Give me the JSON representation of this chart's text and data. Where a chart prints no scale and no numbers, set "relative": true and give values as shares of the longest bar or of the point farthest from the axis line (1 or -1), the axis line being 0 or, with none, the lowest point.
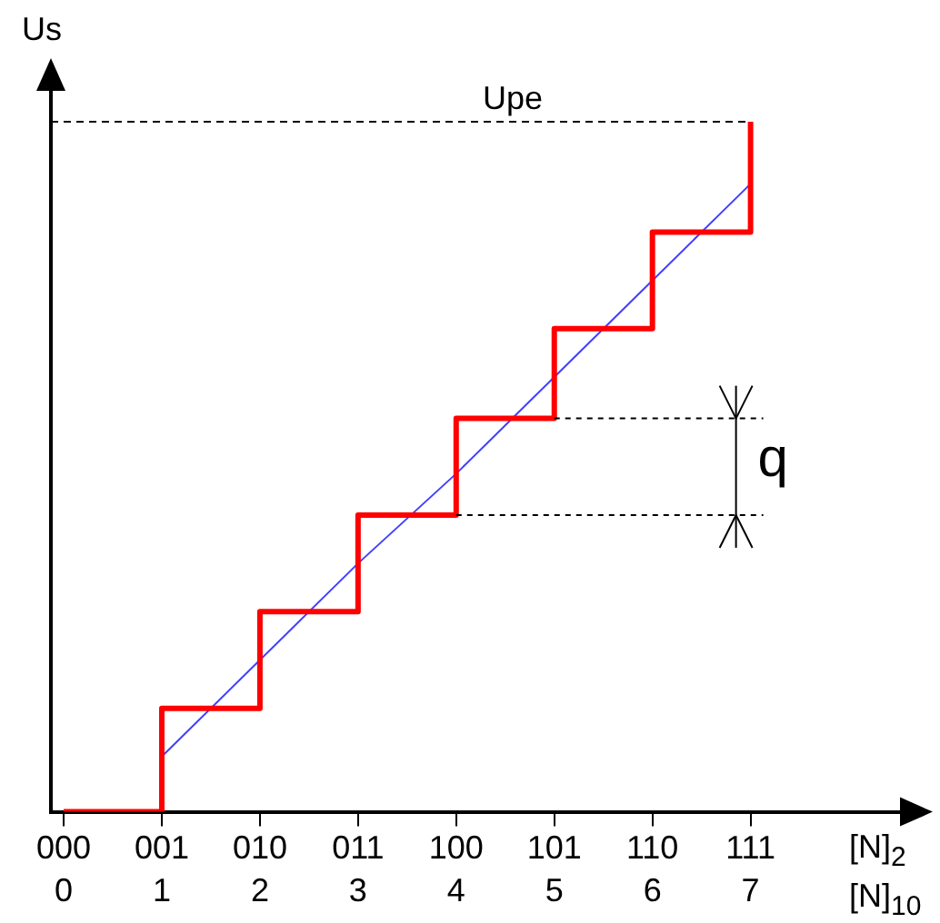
{
  "chart_data": {
    "type": "step",
    "relative": true,
    "grid": false,
    "legend": false,
    "marker": "none",
    "ylabel": "Us",
    "xlabel": "[N]$_{2}$",
    "x2label": "[N]$_{10}$",
    "categories": [
      "000",
      "001",
      "010",
      "011",
      "100",
      "101",
      "110",
      "111"
    ],
    "x2lim": [
      -0.13,
      8.56
    ],
    "x2ticks": [
      0,
      1,
      2,
      3,
      4,
      5,
      6,
      7
    ],
    "series": [
      {
        "color": "#ff0000",
        "values": [
          0,
          0.15,
          0.29,
          0.43,
          0.57,
          0.7,
          0.84,
          1
        ]
      },
      {
        "type": "line",
        "color": "#4040ff",
        "values": [
          null,
          0.08,
          0.22,
          0.36,
          0.49,
          0.63,
          0.77,
          0.91
        ]
      }
    ],
    "ref_lines": [
      {
        "axis": "y",
        "value": 1,
        "label": "Upe",
        "line_style": "dashed",
        "color": "#000000"
      }
    ],
    "annotations": [
      "q"
    ]
  }
}
